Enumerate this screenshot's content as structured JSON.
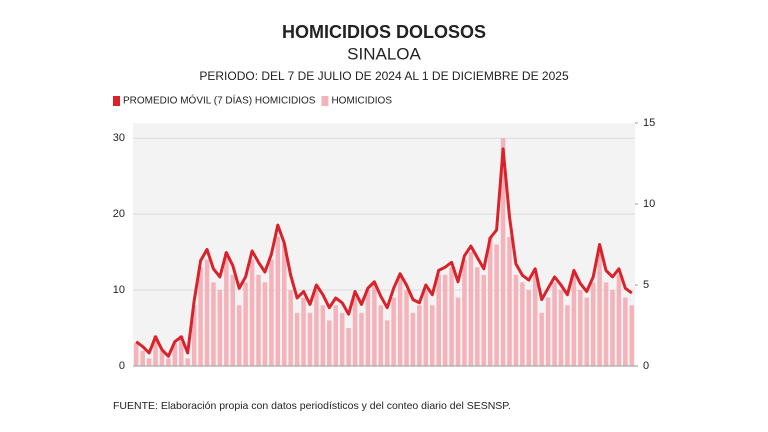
{
  "chart_data": {
    "type": "bar-line",
    "title": "HOMICIDIOS DOLOSOS",
    "subtitle": "SINALOA",
    "period": "PERIODO: DEL 7 DE JULIO DE 2024 AL 1 DE DICIEMBRE DE 2025",
    "source": "FUENTE: Elaboración propia con datos periodísticos y del conteo diario del SESNSP.",
    "legend": "top-left",
    "grid": true,
    "categories": [
      null,
      null,
      null,
      null,
      null,
      null,
      null,
      null,
      null,
      null,
      null,
      null,
      null,
      null,
      null,
      null,
      null,
      null,
      null,
      null,
      null,
      null,
      null,
      null,
      null,
      null,
      null,
      null,
      null,
      null,
      null,
      null,
      null,
      null,
      null,
      null,
      null,
      null,
      null,
      null,
      null,
      null,
      null,
      null,
      null,
      null,
      null,
      null,
      null,
      null,
      null,
      null,
      null,
      null,
      null,
      null,
      null,
      null,
      null,
      null,
      null,
      null,
      null,
      null,
      null,
      null,
      null,
      null,
      null,
      null,
      null,
      null,
      null,
      null,
      null,
      null,
      null,
      null
    ],
    "ylim": [
      0,
      32
    ],
    "yticks": [
      0,
      10,
      20,
      30
    ],
    "y2lim": [
      0,
      15
    ],
    "y2ticks": [
      0,
      5,
      10,
      15
    ],
    "series": [
      {
        "name": "PROMEDIO MÓVIL (7 DÍAS) HOMICIDIOS",
        "color": "#d9222a",
        "axis": "y2",
        "kind": "line",
        "values": [
          1.5,
          1.2,
          0.8,
          1.8,
          1.0,
          0.6,
          1.5,
          1.8,
          0.8,
          4,
          6.5,
          7.2,
          6.0,
          5.5,
          7.0,
          6.2,
          4.8,
          5.5,
          7.1,
          6.4,
          5.8,
          6.9,
          8.7,
          7.6,
          5.6,
          4.2,
          4.6,
          3.8,
          5.0,
          4.4,
          3.6,
          4.2,
          3.9,
          3.2,
          4.6,
          3.8,
          4.8,
          5.2,
          4.3,
          3.6,
          4.8,
          5.7,
          5.0,
          4.1,
          3.9,
          5.0,
          4.4,
          5.9,
          6.1,
          6.4,
          5.2,
          6.8,
          7.4,
          6.7,
          6.0,
          7.9,
          8.4,
          13.4,
          9.2,
          6.3,
          5.6,
          5.3,
          6.0,
          4.1,
          4.8,
          5.5,
          5.0,
          4.4,
          5.9,
          5.1,
          4.6,
          5.5,
          7.5,
          5.9,
          5.5,
          6.0,
          4.8,
          4.5
        ]
      },
      {
        "name": "HOMICIDIOS",
        "color": "#f4b3ba",
        "kind": "bar",
        "values": [
          3,
          2,
          1,
          4,
          2,
          1,
          3,
          4,
          1,
          8,
          13,
          14,
          11,
          10,
          15,
          12,
          8,
          11,
          14,
          12,
          11,
          14,
          17,
          16,
          10,
          7,
          9,
          7,
          10,
          8,
          6,
          8,
          7,
          5,
          9,
          7,
          10,
          11,
          8,
          6,
          9,
          12,
          10,
          7,
          8,
          10,
          8,
          12,
          12,
          13,
          9,
          14,
          15,
          13,
          12,
          17,
          16,
          30,
          17,
          12,
          11,
          10,
          12,
          7,
          9,
          11,
          10,
          8,
          12,
          10,
          9,
          11,
          15,
          11,
          10,
          12,
          9,
          8
        ]
      }
    ]
  }
}
